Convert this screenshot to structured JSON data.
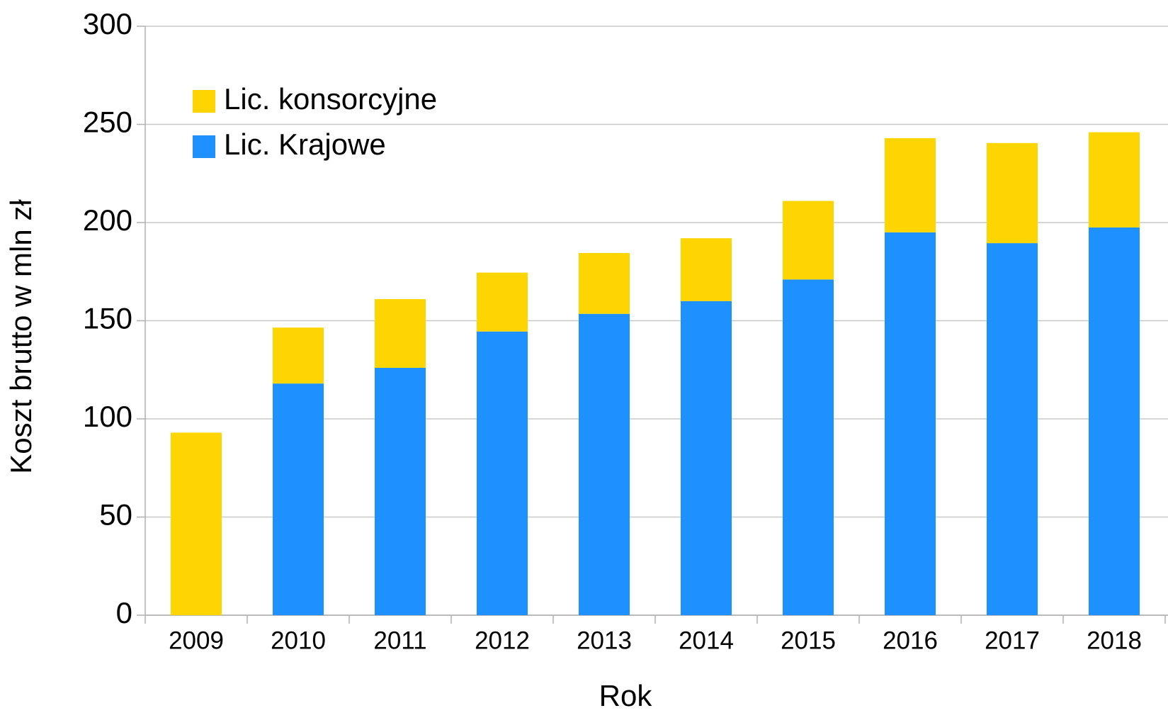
{
  "chart_data": {
    "type": "stacked_bar",
    "x_label": "Rok",
    "y_label": "Koszt brutto w mln zł",
    "categories": [
      "2009",
      "2010",
      "2011",
      "2012",
      "2013",
      "2014",
      "2015",
      "2016",
      "2017",
      "2018"
    ],
    "series": [
      {
        "name": "Lic. konsorcyjne",
        "color": "#ffd500",
        "values": [
          93,
          28.5,
          35,
          30,
          31,
          32,
          40,
          48,
          51,
          48.5
        ]
      },
      {
        "name": "Lic. Krajowe",
        "color": "#1e90ff",
        "values": [
          0,
          118,
          126,
          144.5,
          153.5,
          160,
          171,
          195,
          189.5,
          197.5
        ]
      }
    ],
    "ylim": [
      0,
      300
    ],
    "yticks": [
      0,
      50,
      100,
      150,
      200,
      250,
      300
    ],
    "grid": true,
    "legend": "upper left"
  }
}
